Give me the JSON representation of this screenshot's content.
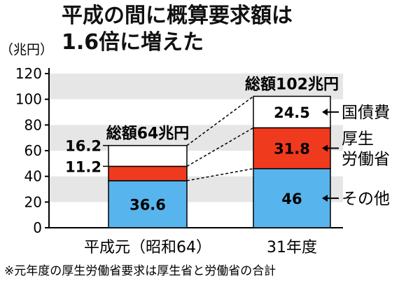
{
  "chart_data": {
    "type": "bar",
    "stacked": true,
    "title_lines": [
      "平成の間に概算要求額は",
      "1.6倍に増えた"
    ],
    "unit_label": "（兆円）",
    "ylim": [
      0,
      120
    ],
    "y_ticks": [
      "0",
      "20",
      "40",
      "60",
      "80",
      "100",
      "120"
    ],
    "categories": [
      "平成元（昭和64）",
      "31年度"
    ],
    "totals": [
      "総額64兆円",
      "総額102兆円"
    ],
    "series": [
      {
        "name": "その他",
        "values": [
          36.6,
          46
        ],
        "labels": [
          "36.6",
          "46"
        ],
        "color": "#58b4ec"
      },
      {
        "name": "厚生労働省",
        "values": [
          11.2,
          31.8
        ],
        "labels": [
          "11.2",
          "31.8"
        ],
        "color": "#f03a1e"
      },
      {
        "name": "国債費",
        "values": [
          16.2,
          24.5
        ],
        "labels": [
          "16.2",
          "24.5"
        ],
        "color": "#ffffff"
      }
    ],
    "legend": [
      "国債費",
      "厚生\n労働省",
      "その他"
    ],
    "note": "※元年度の厚生労働省要求は厚生省と労働省の合計",
    "grid": "alternating bands"
  }
}
